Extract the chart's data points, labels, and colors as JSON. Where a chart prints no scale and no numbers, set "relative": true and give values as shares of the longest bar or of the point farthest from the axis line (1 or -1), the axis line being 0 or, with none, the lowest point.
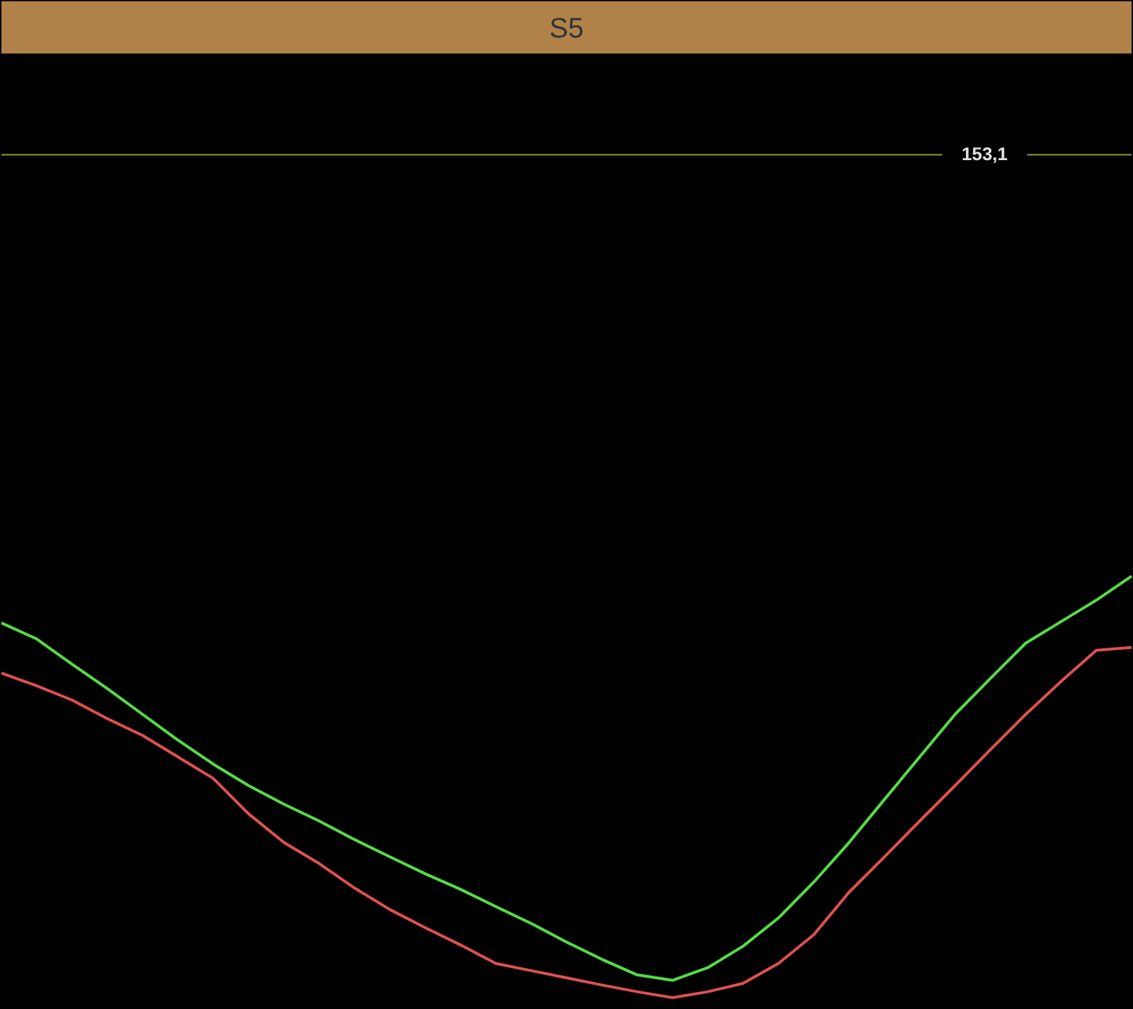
{
  "chart_data": {
    "type": "line",
    "title": "S5",
    "relative": true,
    "categories": [
      null,
      null,
      null,
      null,
      null,
      null,
      null,
      null,
      null,
      null,
      null,
      null,
      null,
      null,
      null,
      null,
      null,
      null,
      null,
      null,
      null,
      null,
      null,
      null,
      null,
      null,
      null,
      null,
      null,
      null,
      null,
      null,
      null
    ],
    "ref_lines": [
      {
        "axis": "y",
        "value": 2.0,
        "label": null,
        "color": "#8a8a2a"
      }
    ],
    "annotations": [
      "153,1"
    ],
    "series": [
      {
        "color": "#55dd44",
        "values": [
          0.889,
          0.851,
          0.791,
          0.733,
          0.672,
          0.611,
          0.554,
          0.503,
          0.459,
          0.419,
          0.375,
          0.334,
          0.294,
          0.257,
          0.216,
          0.176,
          0.132,
          0.091,
          0.054,
          0.041,
          0.071,
          0.122,
          0.189,
          0.274,
          0.368,
          0.47,
          0.571,
          0.672,
          0.757,
          0.841,
          0.892,
          0.943,
          1
        ]
      },
      {
        "color": "#e05050",
        "values": [
          0.77,
          0.74,
          0.706,
          0.662,
          0.622,
          0.571,
          0.52,
          0.436,
          0.368,
          0.318,
          0.26,
          0.209,
          0.166,
          0.125,
          0.081,
          0.064,
          0.047,
          0.03,
          0.014,
          0,
          0.014,
          0.034,
          0.081,
          0.149,
          0.25,
          0.334,
          0.419,
          0.503,
          0.588,
          0.672,
          0.75,
          0.824,
          0.831
        ]
      }
    ]
  }
}
